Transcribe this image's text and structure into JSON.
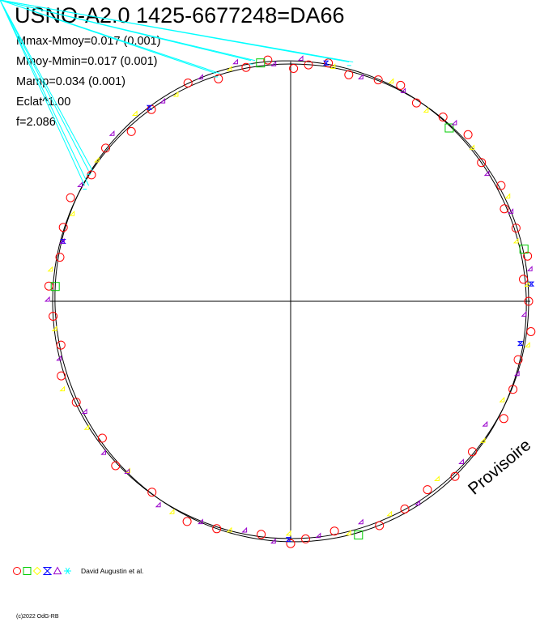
{
  "header": {
    "title": "USNO-A2.0 1425-6677248=DA66",
    "stats": [
      "Mmax-Mmoy=0.017 (0.001)",
      "Mmoy-Mmin=0.017 (0.001)",
      "Mamp=0.034 (0.001)",
      "Eclat^1.00",
      "f=2.086"
    ]
  },
  "watermark": "Provisoire",
  "legend": {
    "author": "David Augustin et al.",
    "symbols": [
      {
        "shape": "circle",
        "color": "#ff0000",
        "icon": "red-circle-icon"
      },
      {
        "shape": "square",
        "color": "#00cc00",
        "icon": "green-square-icon"
      },
      {
        "shape": "diamond",
        "color": "#ffff00",
        "icon": "yellow-diamond-icon"
      },
      {
        "shape": "hourglass",
        "color": "#0000ff",
        "icon": "blue-hourglass-icon"
      },
      {
        "shape": "triangle",
        "color": "#9900cc",
        "icon": "purple-triangle-icon"
      },
      {
        "shape": "star",
        "color": "#00ffff",
        "icon": "cyan-star-icon"
      }
    ]
  },
  "footer": {
    "copyright": "(c)2022 OdG-RB"
  },
  "chart_data": {
    "type": "scatter",
    "title": "USNO-A2.0 1425-6677248=DA66",
    "description_axes": "polar phase diagram",
    "grid": false,
    "legend_position": "bottom-left",
    "amplitude_relative": [
      1.0,
      1.017,
      0.983
    ],
    "series": [
      {
        "name": "red-circle",
        "marker": "circle",
        "color": "#ff0000",
        "phase": [
          0.002,
          0.012,
          0.025,
          0.04,
          0.06,
          0.075,
          0.09,
          0.11,
          0.13,
          0.15,
          0.17,
          0.185,
          0.2,
          0.22,
          0.235,
          0.25,
          0.27,
          0.29,
          0.31,
          0.33,
          0.36,
          0.38,
          0.4,
          0.42,
          0.44,
          0.47,
          0.49,
          0.5,
          0.52,
          0.55,
          0.57,
          0.6,
          0.63,
          0.65,
          0.68,
          0.7,
          0.72,
          0.74,
          0.76,
          0.78,
          0.8,
          0.82,
          0.84,
          0.86,
          0.88,
          0.9,
          0.93,
          0.95,
          0.97,
          0.985
        ]
      },
      {
        "name": "green-square",
        "marker": "square",
        "color": "#00cc00",
        "phase": [
          0.118,
          0.215,
          0.455,
          0.76,
          0.98
        ]
      },
      {
        "name": "yellow-diamond",
        "marker": "diamond",
        "color": "#ffff00",
        "phase": [
          0.03,
          0.07,
          0.1,
          0.14,
          0.18,
          0.21,
          0.24,
          0.28,
          0.32,
          0.35,
          0.39,
          0.43,
          0.46,
          0.5,
          0.54,
          0.58,
          0.62,
          0.66,
          0.69,
          0.73,
          0.77,
          0.81,
          0.85,
          0.89,
          0.92,
          0.96
        ]
      },
      {
        "name": "blue-hourglass",
        "marker": "hourglass",
        "color": "#0000ff",
        "phase": [
          0.025,
          0.24,
          0.28,
          0.5,
          0.79,
          0.9
        ]
      },
      {
        "name": "purple-triangle",
        "marker": "triangle",
        "color": "#9900cc",
        "phase": [
          0.008,
          0.05,
          0.08,
          0.12,
          0.16,
          0.19,
          0.23,
          0.26,
          0.3,
          0.34,
          0.37,
          0.41,
          0.45,
          0.48,
          0.51,
          0.53,
          0.56,
          0.59,
          0.62,
          0.64,
          0.67,
          0.71,
          0.75,
          0.79,
          0.83,
          0.87,
          0.91,
          0.94,
          0.965,
          0.99
        ]
      },
      {
        "name": "cyan-star",
        "marker": "star",
        "color": "#00ffff",
        "phase": [
          0.04,
          0.95,
          0.975,
          0.83,
          0.84
        ]
      }
    ]
  }
}
